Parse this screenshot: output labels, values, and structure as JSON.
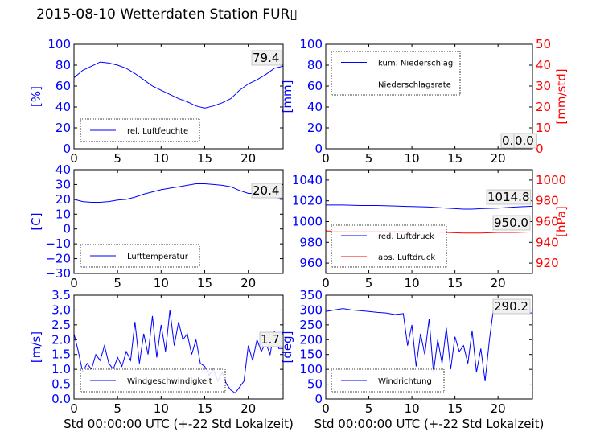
{
  "title": "2015-08-10 Wetterdaten Station FUR▯",
  "colors": {
    "primary": "#0000ff",
    "secondary": "#ff0000",
    "frame": "#000000"
  },
  "chart_data": [
    {
      "id": "humidity",
      "type": "line",
      "xlim": [
        0,
        24
      ],
      "ylim": [
        0,
        100
      ],
      "xticks": [
        "0",
        "5",
        "10",
        "15",
        "20"
      ],
      "yticks": [
        "0",
        "20",
        "40",
        "60",
        "80",
        "100"
      ],
      "ylabel": "[%]",
      "xlabel": "",
      "legend_position": "lower-left",
      "last_value": "79.4",
      "series": [
        {
          "name": "rel. Luftfeuchte",
          "color": "#0000ff",
          "axis": "left",
          "x": [
            0,
            1,
            2,
            3,
            4,
            5,
            6,
            7,
            8,
            9,
            10,
            11,
            12,
            13,
            14,
            15,
            16,
            17,
            18,
            19,
            20,
            21,
            22,
            23,
            24
          ],
          "y": [
            68,
            75,
            79,
            83,
            82,
            80,
            77,
            72,
            66,
            60,
            56,
            52,
            48,
            45,
            41,
            39,
            41,
            44,
            48,
            56,
            62,
            66,
            71,
            77,
            79
          ]
        }
      ]
    },
    {
      "id": "precipitation",
      "type": "line",
      "xlim": [
        0,
        24
      ],
      "ylim": [
        0,
        100
      ],
      "y2lim": [
        0,
        50
      ],
      "xticks": [
        "0",
        "5",
        "10",
        "15",
        "20"
      ],
      "yticks": [
        "0",
        "20",
        "40",
        "60",
        "80",
        "100"
      ],
      "y2ticks": [
        "0",
        "10",
        "20",
        "30",
        "40",
        "50"
      ],
      "ylabel": "[mm]",
      "y2label": "[mm/std]",
      "xlabel": "",
      "legend_position": "upper-left",
      "last_value": "0.0",
      "last_value_2": "0.0",
      "series": [
        {
          "name": "kum. Niederschlag",
          "color": "#0000ff",
          "axis": "left",
          "x": [
            0,
            24
          ],
          "y": [
            0,
            0
          ]
        },
        {
          "name": "Niederschlagsrate",
          "color": "#ff0000",
          "axis": "right",
          "x": [
            0,
            24
          ],
          "y": [
            0,
            0
          ]
        }
      ]
    },
    {
      "id": "temperature",
      "type": "line",
      "xlim": [
        0,
        24
      ],
      "ylim": [
        -30,
        40
      ],
      "xticks": [
        "0",
        "5",
        "10",
        "15",
        "20"
      ],
      "yticks": [
        "−30",
        "−20",
        "−10",
        "0",
        "10",
        "20",
        "30",
        "40"
      ],
      "ylabel": "[C]",
      "xlabel": "",
      "legend_position": "lower-left",
      "last_value": "20.4",
      "series": [
        {
          "name": "Lufttemperatur",
          "color": "#0000ff",
          "axis": "left",
          "x": [
            0,
            1,
            2,
            3,
            4,
            5,
            6,
            7,
            8,
            9,
            10,
            11,
            12,
            13,
            14,
            15,
            16,
            17,
            18,
            19,
            20,
            21,
            22,
            23,
            24
          ],
          "y": [
            20,
            18.5,
            18,
            18,
            18.5,
            19.5,
            20,
            21.5,
            23.5,
            25,
            26.5,
            27.5,
            28.5,
            29.5,
            30.5,
            30.5,
            30,
            29.5,
            28.5,
            26,
            24,
            24,
            23,
            21.5,
            20.4
          ]
        }
      ]
    },
    {
      "id": "pressure",
      "type": "line",
      "xlim": [
        0,
        24
      ],
      "ylim": [
        950,
        1050
      ],
      "y2lim": [
        910,
        1010
      ],
      "xticks": [
        "0",
        "5",
        "10",
        "15",
        "20"
      ],
      "yticks": [
        "960",
        "980",
        "1000",
        "1020",
        "1040"
      ],
      "y2ticks": [
        "920",
        "940",
        "960",
        "980",
        "1000"
      ],
      "ylabel": "",
      "y2label": "[hPa]",
      "xlabel": "",
      "legend_position": "lower-left",
      "last_value": "1014.8",
      "last_value_2": "950.0",
      "series": [
        {
          "name": "red. Luftdruck",
          "color": "#0000ff",
          "axis": "left",
          "x": [
            0,
            2,
            4,
            6,
            8,
            10,
            12,
            14,
            16,
            17,
            18,
            20,
            22,
            24
          ],
          "y": [
            1016,
            1016,
            1015.5,
            1015.5,
            1015,
            1014.5,
            1014,
            1013,
            1012,
            1012,
            1012.5,
            1013,
            1014,
            1014.8
          ]
        },
        {
          "name": "abs. Luftdruck",
          "color": "#ff0000",
          "axis": "right",
          "x": [
            0,
            2,
            4,
            6,
            8,
            10,
            12,
            14,
            16,
            17,
            18,
            20,
            22,
            24
          ],
          "y": [
            951,
            950.5,
            950.5,
            950.5,
            950.5,
            950.5,
            950,
            949.5,
            949,
            949,
            949,
            949.5,
            949.5,
            950
          ]
        }
      ]
    },
    {
      "id": "windspeed",
      "type": "line",
      "xlim": [
        0,
        24
      ],
      "ylim": [
        0,
        3.5
      ],
      "xticks": [
        "0",
        "5",
        "10",
        "15",
        "20"
      ],
      "yticks": [
        "0.0",
        "0.5",
        "1.0",
        "1.5",
        "2.0",
        "2.5",
        "3.0",
        "3.5"
      ],
      "ylabel": "[m/s]",
      "xlabel": "Std 00:00:00 UTC (+-22 Std Lokalzeit)",
      "legend_position": "lower-left",
      "last_value": "1.7",
      "series": [
        {
          "name": "Windgeschwindigkeit",
          "color": "#0000ff",
          "axis": "left",
          "x": [
            0,
            0.5,
            1,
            1.5,
            2,
            2.5,
            3,
            3.5,
            4,
            4.5,
            5,
            5.5,
            6,
            6.5,
            7,
            7.5,
            8,
            8.5,
            9,
            9.5,
            10,
            10.5,
            11,
            11.5,
            12,
            12.5,
            13,
            13.5,
            14,
            14.5,
            15,
            15.5,
            16,
            16.5,
            17,
            17.5,
            18,
            18.5,
            19,
            19.5,
            20,
            20.5,
            21,
            21.5,
            22,
            22.5,
            23,
            23.5,
            24
          ],
          "y": [
            2.2,
            1.6,
            0.9,
            1.2,
            1.0,
            1.5,
            1.3,
            1.8,
            1.2,
            1.0,
            1.4,
            1.1,
            1.6,
            1.3,
            2.6,
            1.2,
            2.2,
            1.5,
            2.8,
            1.4,
            2.5,
            1.6,
            3.0,
            1.8,
            2.6,
            2.0,
            2.2,
            1.5,
            2.0,
            1.2,
            1.1,
            0.8,
            1.0,
            0.6,
            0.9,
            0.5,
            0.3,
            0.2,
            0.4,
            0.6,
            1.8,
            1.3,
            2.0,
            1.6,
            1.9,
            1.5,
            2.3,
            1.7,
            1.7
          ]
        }
      ]
    },
    {
      "id": "winddirection",
      "type": "line",
      "xlim": [
        0,
        24
      ],
      "ylim": [
        0,
        350
      ],
      "xticks": [
        "0",
        "5",
        "10",
        "15",
        "20"
      ],
      "yticks": [
        "0",
        "50",
        "100",
        "150",
        "200",
        "250",
        "300",
        "350"
      ],
      "ylabel": "[deg]",
      "xlabel": "Std 00:00:00 UTC (+-22 Std Lokalzeit)",
      "legend_position": "lower-left",
      "last_value": "290.2",
      "series": [
        {
          "name": "Windrichtung",
          "color": "#0000ff",
          "axis": "left",
          "x": [
            0,
            1,
            2,
            3,
            4,
            5,
            6,
            7,
            8,
            9,
            9.5,
            10,
            10.5,
            11,
            11.5,
            12,
            12.5,
            13,
            13.5,
            14,
            14.5,
            15,
            15.5,
            16,
            16.5,
            17,
            17.5,
            18,
            18.5,
            19,
            19.5,
            20,
            21,
            22,
            23,
            24
          ],
          "y": [
            295,
            300,
            305,
            300,
            298,
            295,
            292,
            290,
            285,
            288,
            180,
            250,
            110,
            220,
            150,
            270,
            90,
            200,
            120,
            240,
            100,
            210,
            160,
            180,
            120,
            230,
            90,
            170,
            60,
            200,
            310,
            300,
            295,
            292,
            290,
            290
          ]
        }
      ]
    }
  ]
}
